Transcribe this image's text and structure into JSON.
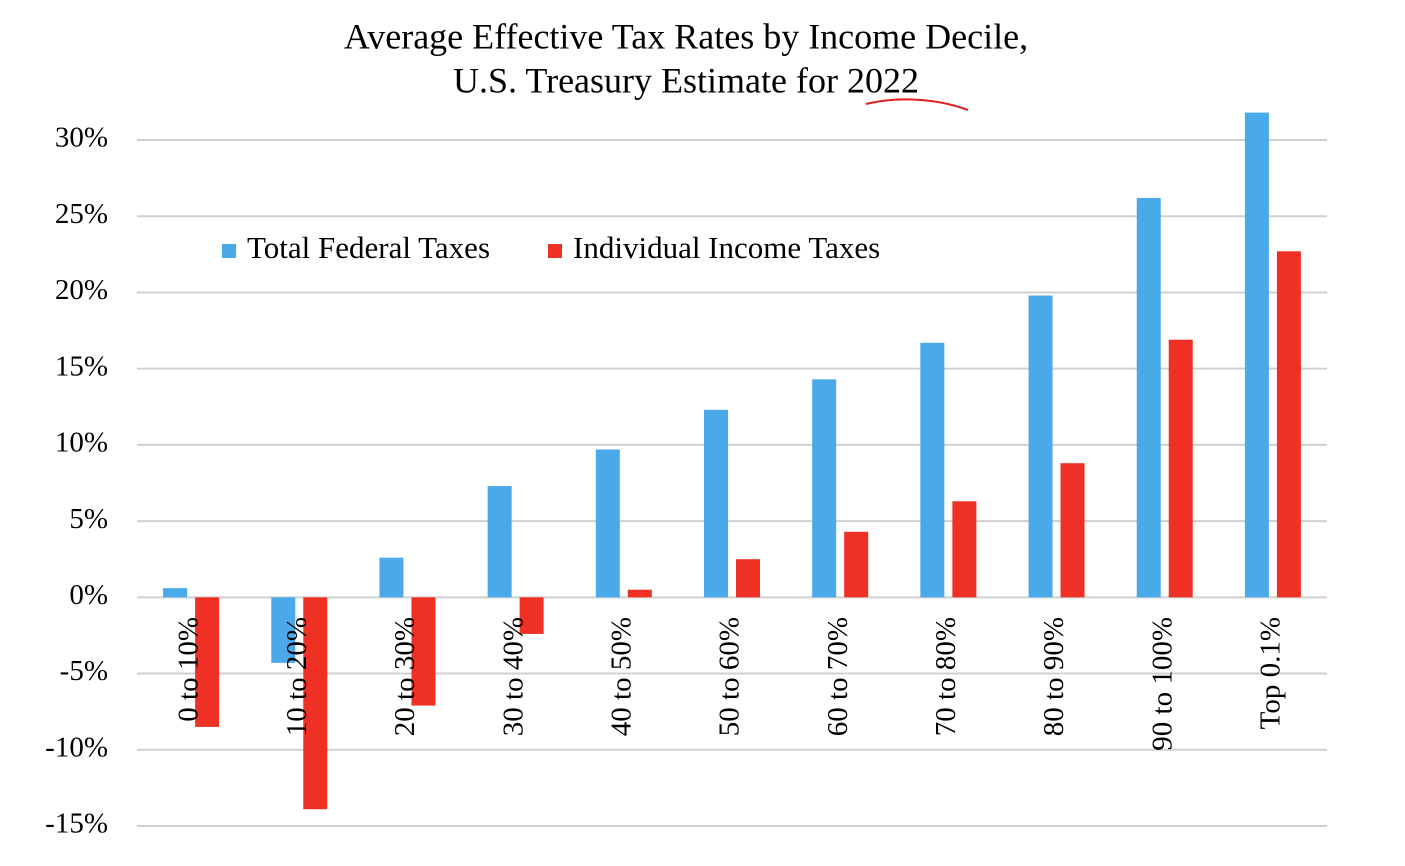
{
  "chart_data": {
    "type": "bar",
    "title": [
      "Average Effective Tax Rates by Income Decile,",
      "U.S. Treasury Estimate for 2022"
    ],
    "categories": [
      "0 to 10%",
      "10 to 20%",
      "20 to 30%",
      "30 to 40%",
      "40 to 50%",
      "50 to 60%",
      "60 to 70%",
      "70 to 80%",
      "80 to 90%",
      "90 to 100%",
      "Top 0.1%"
    ],
    "series": [
      {
        "name": "Total Federal Taxes",
        "color": "#4aa9e9",
        "values": [
          0.6,
          -4.3,
          2.6,
          7.3,
          9.7,
          12.3,
          14.3,
          16.7,
          19.8,
          26.2,
          31.8
        ]
      },
      {
        "name": "Individual Income Taxes",
        "color": "#ee3124",
        "values": [
          -8.5,
          -13.9,
          -7.1,
          -2.4,
          0.5,
          2.5,
          4.3,
          6.3,
          8.8,
          16.9,
          22.7
        ]
      }
    ],
    "ylim": [
      -15,
      30
    ],
    "yticks": [
      {
        "value": -15,
        "label": "-15%"
      },
      {
        "value": -10,
        "label": "-10%"
      },
      {
        "value": -5,
        "label": "-5%"
      },
      {
        "value": 0,
        "label": "0%"
      },
      {
        "value": 5,
        "label": "5%"
      },
      {
        "value": 10,
        "label": "10%"
      },
      {
        "value": 15,
        "label": "15%"
      },
      {
        "value": 20,
        "label": "20%"
      },
      {
        "value": 25,
        "label": "25%"
      },
      {
        "value": 30,
        "label": "30%"
      }
    ],
    "grid": true,
    "legend": "top-left"
  }
}
